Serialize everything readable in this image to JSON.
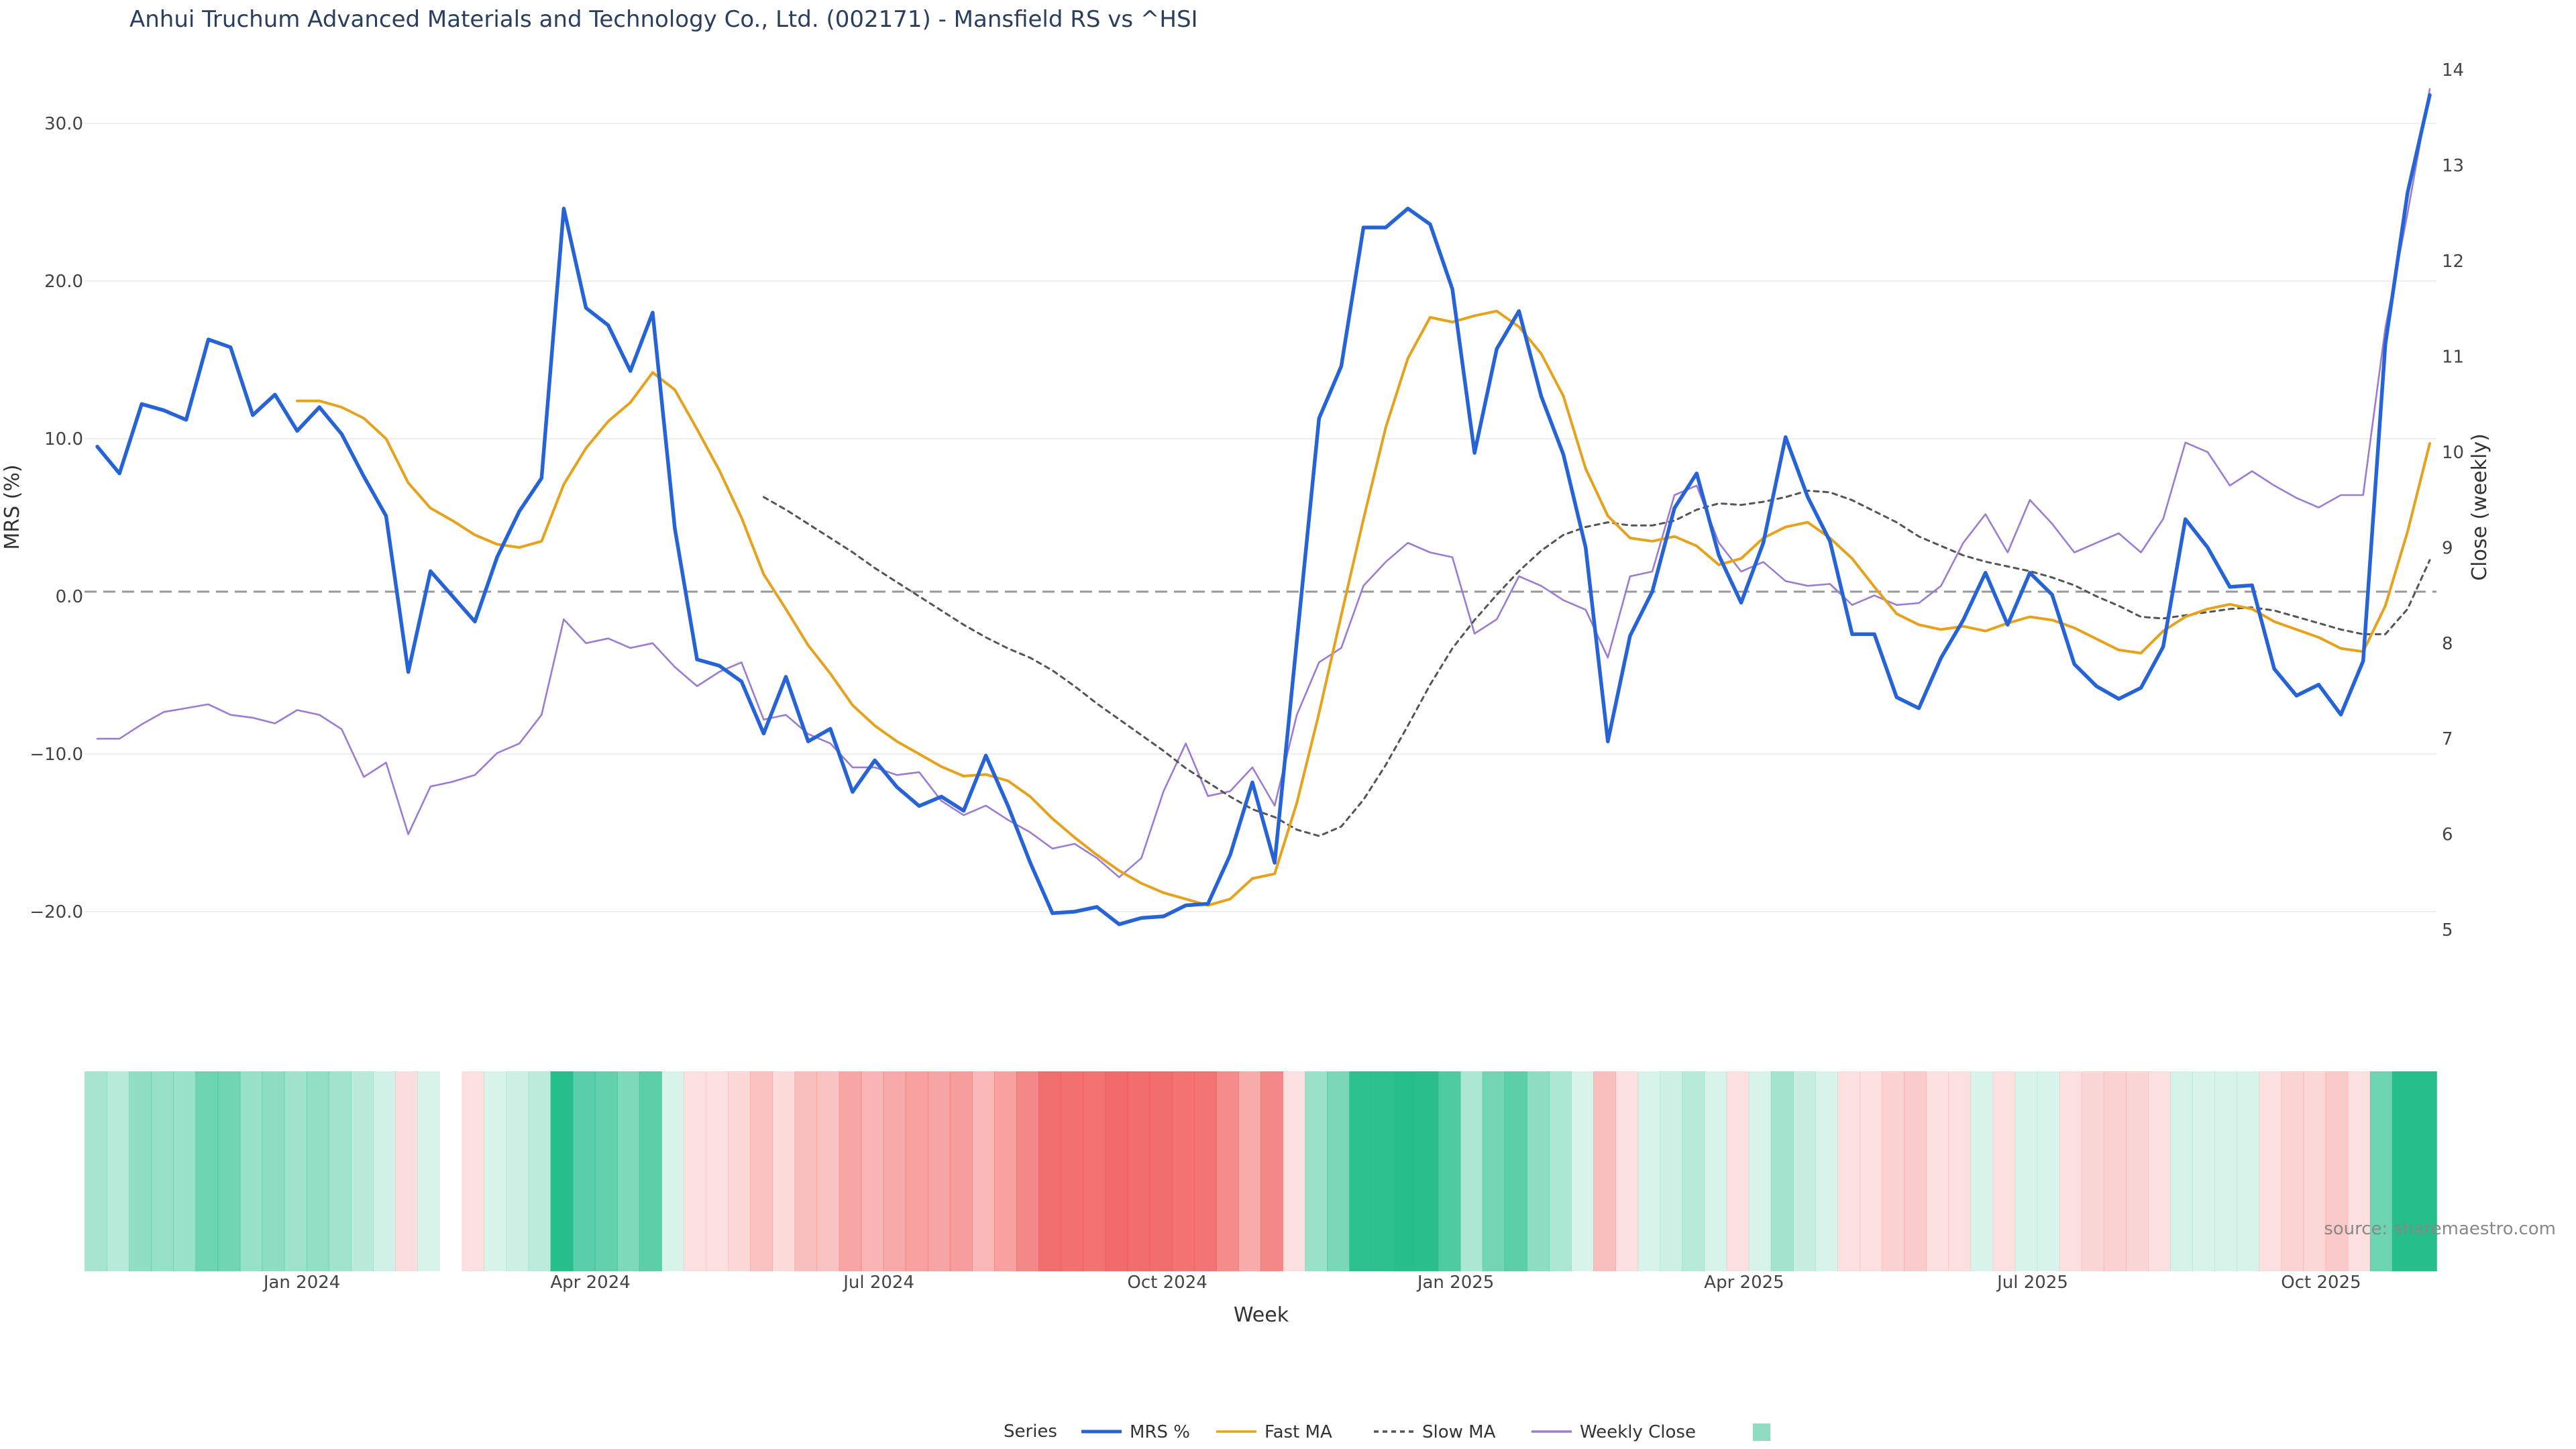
{
  "chart_data": {
    "type": "line",
    "title": "Anhui Truchum Advanced Materials and Technology Co., Ltd. (002171) - Mansfield RS vs ^HSI",
    "xlabel": "Week",
    "ylabel_left": "MRS (%)",
    "ylabel_right": "Close (weekly)",
    "ylim_left": [
      -26,
      34
    ],
    "ylim_right": [
      4.2,
      14.1
    ],
    "yticks_left": [
      "30.0",
      "20.0",
      "10.0",
      "0.0",
      "−10.0",
      "−20.0"
    ],
    "ytick_values_left": [
      30,
      20,
      10,
      0,
      -10,
      -20
    ],
    "yticks_right": [
      "14",
      "13",
      "12",
      "11",
      "10",
      "9",
      "8",
      "7",
      "6",
      "5"
    ],
    "ytick_values_right": [
      14,
      13,
      12,
      11,
      10,
      9,
      8,
      7,
      6,
      5
    ],
    "xticks": [
      "Jan 2024",
      "Apr 2024",
      "Jul 2024",
      "Oct 2024",
      "Jan 2025",
      "Apr 2025",
      "Jul 2025",
      "Oct 2025"
    ],
    "xtick_weeks": [
      9.8,
      22.8,
      35.8,
      48.8,
      61.8,
      74.8,
      87.8,
      100.8
    ],
    "week_count": 106,
    "series": [
      {
        "name": "MRS %",
        "color": "#2563d6",
        "axis": "left",
        "values": [
          9.5,
          7.8,
          12.2,
          11.8,
          11.2,
          16.3,
          15.8,
          11.5,
          12.8,
          10.5,
          12.0,
          10.3,
          7.6,
          5.1,
          -4.8,
          1.6,
          0.0,
          -1.6,
          2.5,
          5.4,
          7.5,
          24.6,
          18.3,
          17.2,
          14.3,
          18.0,
          4.3,
          -4.0,
          -4.4,
          -5.4,
          -8.7,
          -5.1,
          -9.2,
          -8.4,
          -12.4,
          -10.4,
          -12.1,
          -13.3,
          -12.7,
          -13.6,
          -10.1,
          -13.3,
          -16.9,
          -20.1,
          -20.0,
          -19.7,
          -20.8,
          -20.4,
          -20.3,
          -19.6,
          -19.5,
          -16.4,
          -11.8,
          -16.9,
          -2.8,
          11.3,
          14.6,
          23.4,
          23.4,
          24.6,
          23.6,
          19.5,
          9.1,
          15.7,
          18.1,
          12.7,
          9.0,
          3.1,
          -9.2,
          -2.5,
          0.3,
          5.6,
          7.8,
          2.6,
          -0.4,
          3.4,
          10.1,
          6.3,
          3.5,
          -2.4,
          -2.4,
          -6.4,
          -7.1,
          -3.9,
          -1.5,
          1.5,
          -1.8,
          1.5,
          0.1,
          -4.3,
          -5.7,
          -6.5,
          -5.8,
          -3.2,
          4.9,
          3.1,
          0.6,
          0.7,
          -4.6,
          -6.3,
          -5.6,
          -7.5,
          -4.1,
          16.0,
          25.6,
          31.8
        ]
      },
      {
        "name": "Fast MA",
        "color": "#e6a21c",
        "axis": "left",
        "values": [
          null,
          null,
          null,
          null,
          null,
          null,
          null,
          null,
          null,
          12.4,
          12.4,
          12.0,
          11.3,
          10.0,
          7.2,
          5.6,
          4.8,
          3.9,
          3.3,
          3.1,
          3.5,
          7.1,
          9.4,
          11.1,
          12.3,
          14.2,
          13.1,
          10.6,
          8.0,
          5.0,
          1.4,
          -0.8,
          -3.1,
          -4.9,
          -6.9,
          -8.2,
          -9.2,
          -10.0,
          -10.8,
          -11.4,
          -11.3,
          -11.7,
          -12.7,
          -14.1,
          -15.3,
          -16.4,
          -17.4,
          -18.2,
          -18.8,
          -19.2,
          -19.6,
          -19.2,
          -17.9,
          -17.6,
          -13.1,
          -7.4,
          -1.2,
          4.9,
          10.7,
          15.1,
          17.7,
          17.4,
          17.8,
          18.1,
          17.1,
          15.4,
          12.7,
          8.1,
          5.1,
          3.7,
          3.5,
          3.8,
          3.2,
          2.0,
          2.4,
          3.7,
          4.4,
          4.7,
          3.7,
          2.4,
          0.6,
          -1.1,
          -1.8,
          -2.1,
          -1.9,
          -2.2,
          -1.7,
          -1.3,
          -1.5,
          -2.0,
          -2.7,
          -3.4,
          -3.6,
          -2.2,
          -1.3,
          -0.8,
          -0.5,
          -0.8,
          -1.6,
          -2.1,
          -2.6,
          -3.3,
          -3.5,
          -0.6,
          4.1,
          9.7
        ]
      },
      {
        "name": "Slow MA",
        "color": "#555555",
        "axis": "left",
        "dash": true,
        "values": [
          null,
          null,
          null,
          null,
          null,
          null,
          null,
          null,
          null,
          null,
          null,
          null,
          null,
          null,
          null,
          null,
          null,
          null,
          null,
          null,
          null,
          null,
          null,
          null,
          null,
          null,
          null,
          null,
          null,
          null,
          6.3,
          5.5,
          4.6,
          3.7,
          2.8,
          1.8,
          0.9,
          0.0,
          -0.9,
          -1.8,
          -2.6,
          -3.3,
          -3.9,
          -4.7,
          -5.7,
          -6.8,
          -7.8,
          -8.8,
          -9.8,
          -10.9,
          -11.8,
          -12.7,
          -13.5,
          -14.0,
          -14.8,
          -15.2,
          -14.6,
          -12.9,
          -10.7,
          -8.2,
          -5.6,
          -3.3,
          -1.5,
          0.1,
          1.6,
          2.9,
          3.9,
          4.4,
          4.7,
          4.5,
          4.5,
          4.8,
          5.5,
          5.9,
          5.8,
          6.0,
          6.3,
          6.7,
          6.6,
          6.1,
          5.4,
          4.7,
          3.8,
          3.2,
          2.6,
          2.2,
          1.9,
          1.6,
          1.2,
          0.7,
          0.0,
          -0.6,
          -1.3,
          -1.4,
          -1.2,
          -1.0,
          -0.8,
          -0.7,
          -0.9,
          -1.3,
          -1.7,
          -2.1,
          -2.4,
          -2.4,
          -0.8,
          2.3
        ]
      },
      {
        "name": "Weekly Close",
        "color": "#9b7bd4",
        "axis": "right",
        "values": [
          7.0,
          7.0,
          7.15,
          7.28,
          7.32,
          7.36,
          7.25,
          7.22,
          7.16,
          7.3,
          7.25,
          7.1,
          6.6,
          6.75,
          6.0,
          6.5,
          6.55,
          6.62,
          6.85,
          6.95,
          7.25,
          8.25,
          8.0,
          8.05,
          7.95,
          8.0,
          7.75,
          7.55,
          7.7,
          7.8,
          7.2,
          7.25,
          7.05,
          6.95,
          6.7,
          6.7,
          6.62,
          6.65,
          6.35,
          6.2,
          6.3,
          6.15,
          6.02,
          5.85,
          5.9,
          5.75,
          5.55,
          5.75,
          6.45,
          6.95,
          6.4,
          6.45,
          6.7,
          6.3,
          7.25,
          7.8,
          7.95,
          8.6,
          8.85,
          9.05,
          8.95,
          8.9,
          8.1,
          8.25,
          8.7,
          8.6,
          8.45,
          8.35,
          7.85,
          8.7,
          8.75,
          9.55,
          9.65,
          9.05,
          8.75,
          8.85,
          8.65,
          8.6,
          8.62,
          8.4,
          8.5,
          8.4,
          8.42,
          8.6,
          9.05,
          9.35,
          8.95,
          9.5,
          9.25,
          8.95,
          9.05,
          9.15,
          8.95,
          9.3,
          10.1,
          10.0,
          9.65,
          9.8,
          9.65,
          9.52,
          9.42,
          9.55,
          9.55,
          11.3,
          12.5,
          13.8
        ]
      }
    ],
    "heatmap_strip": {
      "description": "MRS % by week colour band (green positive, red negative)",
      "positive_color": "#26bf8c",
      "negative_color": "#f05454",
      "gap_weeks": [
        16
      ]
    },
    "legend": {
      "title": "Series",
      "items": [
        "MRS %",
        "Fast MA",
        "Slow MA",
        "Weekly Close",
        ""
      ],
      "position": "bottom-center"
    },
    "source_text": "source: sharemaestro.com"
  }
}
